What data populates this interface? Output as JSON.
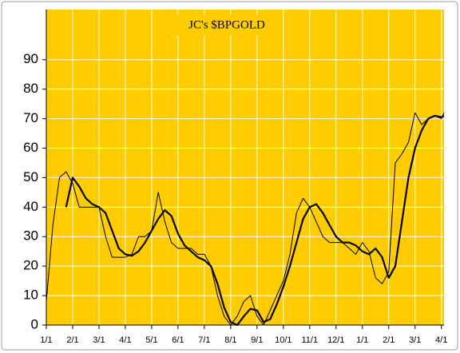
{
  "chart_data": {
    "type": "line",
    "title": "JC's $BPGOLD",
    "x": [
      0,
      0.25,
      0.5,
      0.75,
      1,
      1.25,
      1.5,
      1.75,
      2,
      2.25,
      2.5,
      2.75,
      3,
      3.25,
      3.5,
      3.75,
      4,
      4.25,
      4.5,
      4.75,
      5,
      5.25,
      5.5,
      5.75,
      6,
      6.25,
      6.5,
      6.75,
      7,
      7.25,
      7.5,
      7.75,
      8,
      8.25,
      8.5,
      8.75,
      9,
      9.25,
      9.5,
      9.75,
      10,
      10.25,
      10.5,
      10.75,
      11,
      11.25,
      11.5,
      11.75,
      12,
      12.25,
      12.5,
      12.75,
      13,
      13.25,
      13.5,
      13.75,
      14,
      14.25,
      14.5,
      14.75,
      15,
      15.1
    ],
    "series": [
      {
        "color": "#000000",
        "width": 1,
        "values": [
          8,
          34,
          50,
          52,
          48,
          40,
          40,
          40,
          40,
          30,
          23,
          23,
          23,
          24,
          30,
          30,
          32,
          45,
          35,
          28,
          26,
          26,
          26,
          24,
          24,
          20,
          10,
          3,
          0,
          3,
          8,
          10,
          3,
          0,
          5,
          10,
          15,
          24,
          38,
          43,
          40,
          35,
          30,
          28,
          28,
          28,
          26,
          24,
          28,
          25,
          16,
          14,
          18,
          55,
          58,
          62,
          72,
          68,
          70,
          71,
          70,
          72
        ]
      },
      {
        "color": "#000000",
        "width": 2.2,
        "values": [
          null,
          null,
          null,
          40,
          50,
          47,
          43,
          41,
          40,
          38,
          32,
          26,
          24,
          23.5,
          25,
          28,
          32,
          36,
          39,
          37,
          31,
          27,
          25,
          23,
          22,
          20,
          14,
          6,
          1,
          0,
          3,
          5.5,
          5,
          1,
          2,
          7,
          13,
          20,
          28,
          36,
          40,
          41,
          38,
          34,
          30,
          28,
          28,
          27,
          25,
          24,
          26,
          23,
          16,
          20,
          35,
          50,
          60,
          66,
          70,
          71,
          70.5,
          71
        ]
      }
    ],
    "xlim": [
      0,
      15.1
    ],
    "xticks": [
      {
        "value": 0,
        "label": "1/1"
      },
      {
        "value": 1,
        "label": "2/1"
      },
      {
        "value": 2,
        "label": "3/1"
      },
      {
        "value": 3,
        "label": "4/1"
      },
      {
        "value": 4,
        "label": "5/1"
      },
      {
        "value": 5,
        "label": "6/1"
      },
      {
        "value": 6,
        "label": "7/1"
      },
      {
        "value": 7,
        "label": "8/1"
      },
      {
        "value": 8,
        "label": "9/1"
      },
      {
        "value": 9,
        "label": "10/1"
      },
      {
        "value": 10,
        "label": "11/1"
      },
      {
        "value": 11,
        "label": "12/1"
      },
      {
        "value": 12,
        "label": "1/1"
      },
      {
        "value": 13,
        "label": "2/1"
      },
      {
        "value": 14,
        "label": "3/1"
      },
      {
        "value": 15,
        "label": "4/1"
      }
    ],
    "ylim": [
      0,
      107
    ],
    "yticks": [
      0,
      10,
      20,
      30,
      40,
      50,
      60,
      70,
      80,
      90
    ],
    "grid": true,
    "background": "#ffcc00"
  }
}
